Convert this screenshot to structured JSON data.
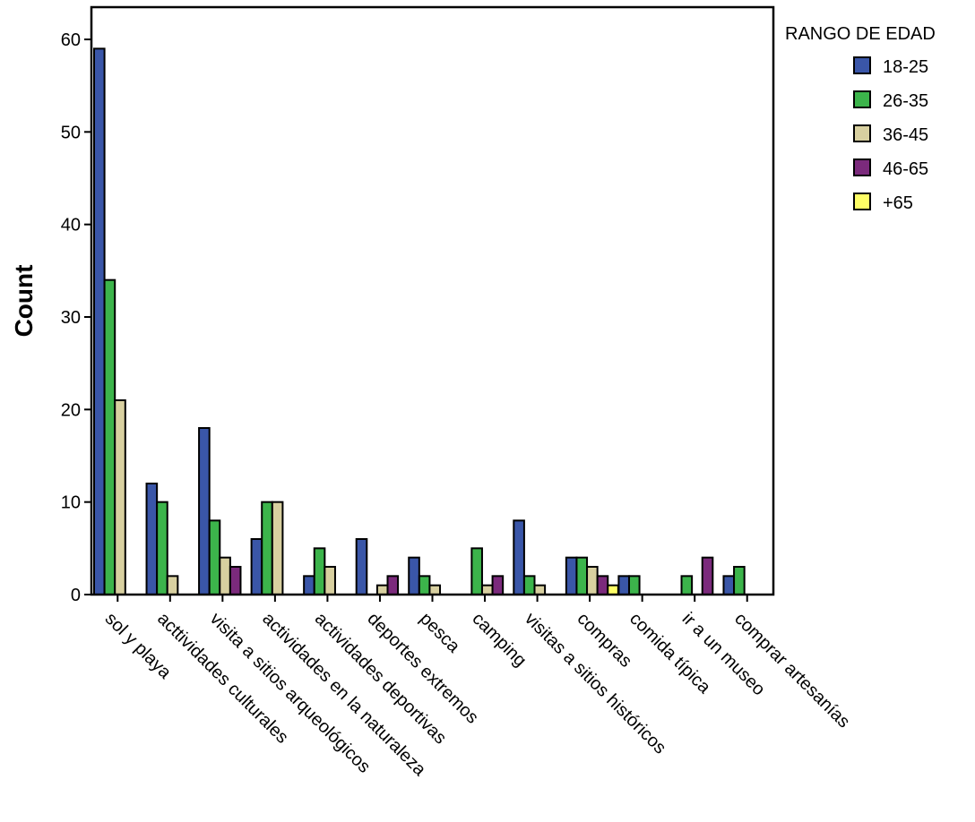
{
  "chart_data": {
    "type": "bar",
    "title": "",
    "xlabel": "",
    "ylabel": "Count",
    "ylim": [
      0,
      64
    ],
    "yticks": [
      0,
      10,
      20,
      30,
      40,
      50,
      60
    ],
    "grid": false,
    "legend_placement": "top-right",
    "legend_title": "RANGO DE EDAD",
    "categories": [
      "sol y playa",
      "acttividades culturales",
      "visita a sitios arqueológicos",
      "actividades en la naturaleza",
      "actividades deportivas",
      "deportes extremos",
      "pesca",
      "camping",
      "visitas a sitios históricos",
      "compras",
      "comida típica",
      "ir a un museo",
      "comprar artesanías"
    ],
    "series": [
      {
        "name": "18-25",
        "color": "#3a56a8",
        "values": [
          59,
          12,
          18,
          6,
          2,
          6,
          4,
          0,
          8,
          4,
          2,
          0,
          2
        ]
      },
      {
        "name": "26-35",
        "color": "#3cb44b",
        "values": [
          34,
          10,
          8,
          10,
          5,
          0,
          2,
          5,
          2,
          4,
          2,
          2,
          3
        ]
      },
      {
        "name": "36-45",
        "color": "#d8d0a0",
        "values": [
          21,
          2,
          4,
          10,
          3,
          1,
          1,
          1,
          1,
          3,
          0,
          0,
          0
        ]
      },
      {
        "name": "46-65",
        "color": "#7b2a7c",
        "values": [
          0,
          0,
          3,
          0,
          0,
          2,
          0,
          2,
          0,
          2,
          0,
          4,
          0
        ]
      },
      {
        "name": "+65",
        "color": "#ffff66",
        "values": [
          0,
          0,
          0,
          0,
          0,
          0,
          0,
          0,
          0,
          1,
          0,
          0,
          0
        ]
      }
    ]
  }
}
